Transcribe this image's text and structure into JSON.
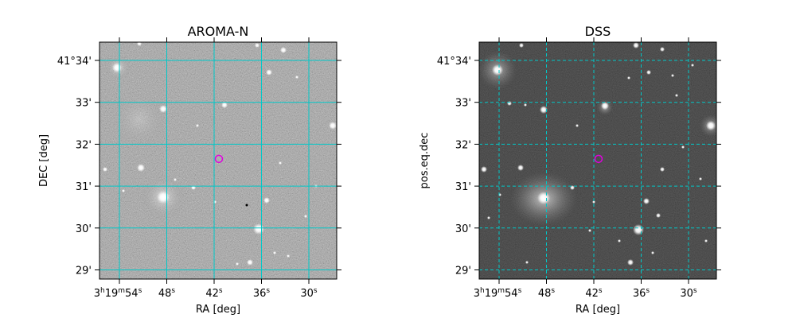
{
  "colors": {
    "grid": "#00c8c8",
    "marker": "#e000e0",
    "frame": "#000000"
  },
  "panels": [
    {
      "id": "aroma",
      "title": "AROMA-N",
      "xlabel": "RA [deg]",
      "ylabel": "DEC [deg]",
      "background": "noisy-gray",
      "grid_style": "solid"
    },
    {
      "id": "dss",
      "title": "DSS",
      "xlabel": "RA [deg]",
      "ylabel": "pos.eq.dec",
      "background": "dark",
      "grid_style": "dashed"
    }
  ],
  "ra_ticks": [
    {
      "h": "3",
      "m": "19",
      "s": "54",
      "label_sup": true
    },
    {
      "s": "48"
    },
    {
      "s": "42"
    },
    {
      "s": "36"
    },
    {
      "s": "30"
    }
  ],
  "dec_ticks": [
    "41°34'",
    "33'",
    "32'",
    "31'",
    "30'",
    "29'"
  ],
  "ra_seconds": [
    54,
    48,
    42,
    36,
    30
  ],
  "dec_arcmin": [
    34,
    33,
    32,
    31,
    30,
    29
  ],
  "target": {
    "ra_s": 41.4,
    "dec_arcmin": 31.65
  }
}
